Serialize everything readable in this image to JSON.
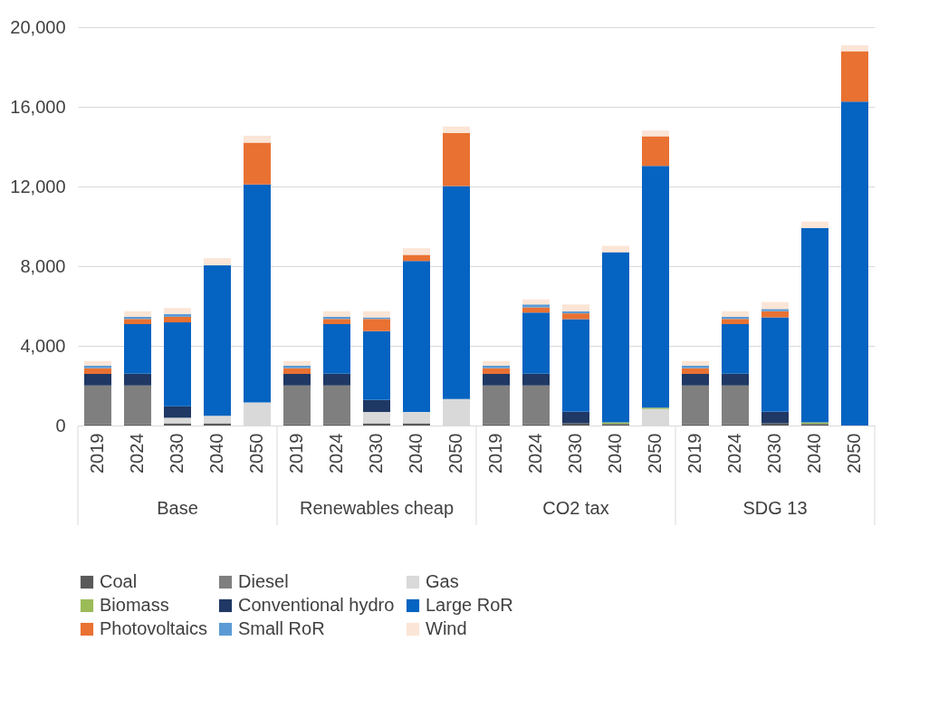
{
  "chart_data": {
    "type": "bar",
    "stacked": true,
    "categories": [
      "2019",
      "2024",
      "2030",
      "2040",
      "2050",
      "2019",
      "2024",
      "2030",
      "2040",
      "2050",
      "2019",
      "2024",
      "2030",
      "2040",
      "2050",
      "2019",
      "2024",
      "2030",
      "2040",
      "2050"
    ],
    "annotations": [
      "Base",
      "Renewables cheap",
      "CO2 tax",
      "SDG 13"
    ],
    "series": [
      {
        "name": "Coal",
        "color": "#595959",
        "values": [
          70,
          70,
          110,
          110,
          0,
          70,
          70,
          110,
          110,
          0,
          70,
          70,
          110,
          80,
          0,
          70,
          70,
          110,
          80,
          0
        ]
      },
      {
        "name": "Diesel",
        "color": "#7f7f7f",
        "values": [
          1940,
          1940,
          0,
          0,
          0,
          1940,
          1940,
          0,
          0,
          0,
          1940,
          1940,
          0,
          0,
          0,
          1940,
          1940,
          0,
          0,
          0
        ]
      },
      {
        "name": "Gas",
        "color": "#d9d9d9",
        "values": [
          0,
          0,
          280,
          380,
          1160,
          0,
          0,
          570,
          570,
          1330,
          0,
          0,
          0,
          0,
          830,
          0,
          0,
          0,
          0,
          0
        ]
      },
      {
        "name": "Biomass",
        "color": "#9bbb59",
        "values": [
          0,
          0,
          0,
          0,
          0,
          0,
          0,
          0,
          0,
          0,
          0,
          0,
          0,
          80,
          70,
          0,
          0,
          0,
          80,
          0
        ]
      },
      {
        "name": "Conventional hydro",
        "color": "#1f3864",
        "values": [
          580,
          590,
          580,
          0,
          0,
          580,
          590,
          600,
          0,
          0,
          580,
          590,
          580,
          0,
          0,
          580,
          590,
          580,
          0,
          0
        ]
      },
      {
        "name": "Large RoR",
        "color": "#0563c1",
        "values": [
          0,
          2490,
          4210,
          7550,
          10940,
          0,
          2490,
          3460,
          7580,
          10690,
          0,
          3070,
          4650,
          8540,
          12130,
          0,
          2490,
          4740,
          9760,
          16260
        ]
      },
      {
        "name": "Photovoltaics",
        "color": "#e97132",
        "values": [
          290,
          260,
          280,
          0,
          2100,
          290,
          260,
          610,
          310,
          2670,
          290,
          260,
          290,
          0,
          1490,
          290,
          260,
          310,
          0,
          2530
        ]
      },
      {
        "name": "Small RoR",
        "color": "#5b9bd5",
        "values": [
          130,
          110,
          140,
          0,
          0,
          130,
          110,
          80,
          0,
          0,
          130,
          150,
          110,
          0,
          0,
          130,
          110,
          110,
          0,
          0
        ]
      },
      {
        "name": "Wind",
        "color": "#fbe5d6",
        "values": [
          230,
          280,
          300,
          360,
          350,
          230,
          280,
          310,
          330,
          320,
          230,
          250,
          340,
          320,
          290,
          230,
          280,
          350,
          320,
          300
        ]
      }
    ],
    "ylim": [
      0,
      20000
    ],
    "yticks": [
      0,
      {
        "value": 4000,
        "label": "4,000"
      },
      {
        "value": 8000,
        "label": "8,000"
      },
      {
        "value": 12000,
        "label": "12,000"
      },
      {
        "value": 16000,
        "label": "16,000"
      },
      {
        "value": 20000,
        "label": "20,000"
      }
    ],
    "grid": "y",
    "legend": "bottom"
  }
}
